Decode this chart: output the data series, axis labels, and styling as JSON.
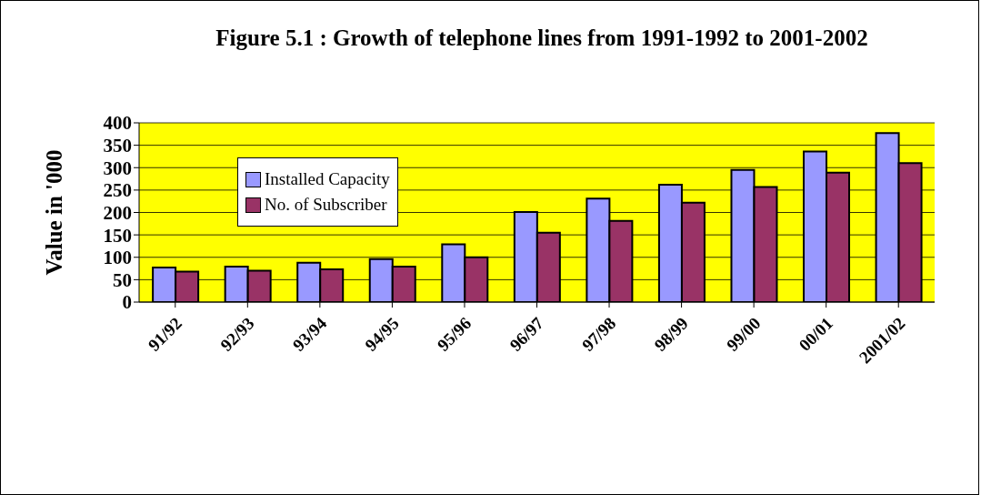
{
  "chart_data": {
    "type": "bar",
    "title": "Figure 5.1 : Growth of telephone lines from 1991-1992 to 2001-2002",
    "ylabel": "Value in '000",
    "categories": [
      "91/92",
      "92/93",
      "93/94",
      "94/95",
      "95/96",
      "96/97",
      "97/98",
      "98/99",
      "99/00",
      "00/01",
      "2001/02"
    ],
    "series": [
      {
        "name": "Installed Capacity",
        "color": "#9999ff",
        "values": [
          77,
          79,
          88,
          96,
          129,
          201,
          231,
          262,
          295,
          336,
          377
        ]
      },
      {
        "name": "No. of Subscriber",
        "color": "#993366",
        "values": [
          68,
          70,
          73,
          79,
          100,
          155,
          181,
          222,
          257,
          289,
          310
        ]
      }
    ],
    "ylim": [
      0,
      400
    ],
    "yticks": [
      0,
      50,
      100,
      150,
      200,
      250,
      300,
      350,
      400
    ],
    "grid": "y",
    "legend": "top left"
  }
}
